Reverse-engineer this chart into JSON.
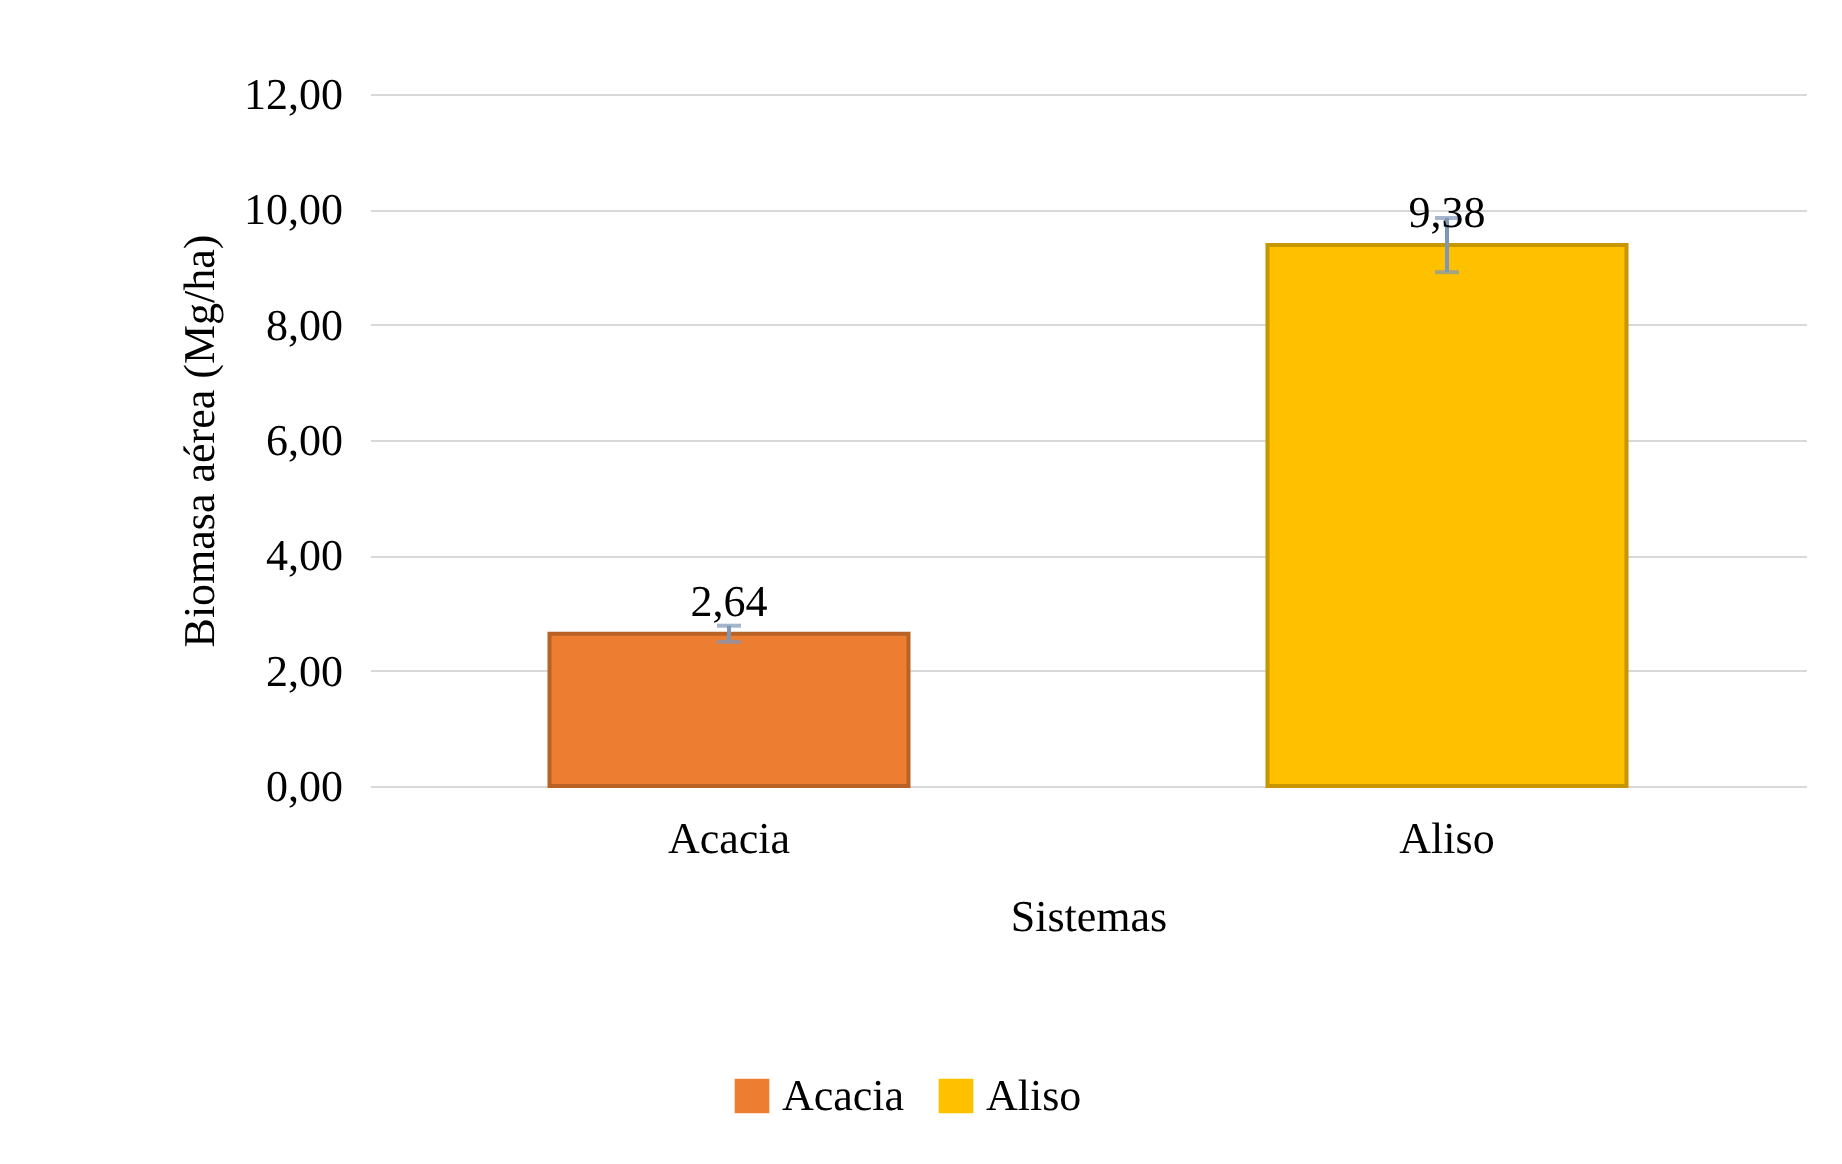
{
  "chart_data": {
    "type": "bar",
    "xlabel": "Sistemas",
    "ylabel": "Biomasa aérea (Mg/ha)",
    "categories": [
      "Acacia",
      "Aliso"
    ],
    "series": [
      {
        "name": "Acacia",
        "color": "#ed7d31",
        "values": [
          2.64,
          null
        ],
        "errors": [
          0.14,
          null
        ],
        "value_labels": [
          "2,64",
          null
        ]
      },
      {
        "name": "Aliso",
        "color": "#ffc000",
        "values": [
          null,
          9.38
        ],
        "errors": [
          null,
          0.47
        ],
        "value_labels": [
          null,
          "9,38"
        ]
      }
    ],
    "ylim": [
      0,
      12
    ],
    "yticks": [
      {
        "value": 0,
        "label": "0,00"
      },
      {
        "value": 2,
        "label": "2,00"
      },
      {
        "value": 4,
        "label": "4,00"
      },
      {
        "value": 6,
        "label": "6,00"
      },
      {
        "value": 8,
        "label": "8,00"
      },
      {
        "value": 10,
        "label": "10,00"
      },
      {
        "value": 12,
        "label": "12,00"
      }
    ],
    "grid": "y",
    "legend": "bottom"
  }
}
